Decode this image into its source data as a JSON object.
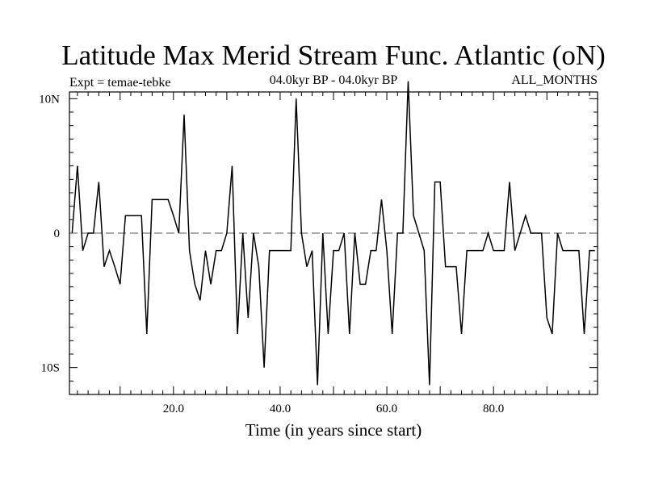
{
  "chart_data": {
    "type": "line",
    "title": "Latitude Max Merid Stream Func. Atlantic (oN)",
    "experiment_label": "Expt = temae-tebke",
    "period_label": "04.0kyr BP - 04.0kyr BP",
    "season_label": "ALL_MONTHS",
    "xlabel": "Time (in years since start)",
    "ylabel": "",
    "xlim": [
      0.5,
      99.5
    ],
    "ylim": [
      -12.0,
      10.5
    ],
    "x_ticks": [
      {
        "value": 20,
        "label": "20.0"
      },
      {
        "value": 40,
        "label": "40.0"
      },
      {
        "value": 60,
        "label": "60.0"
      },
      {
        "value": 80,
        "label": "80.0"
      }
    ],
    "y_ticks": [
      {
        "value": 10,
        "label": "10N"
      },
      {
        "value": 0,
        "label": "0"
      },
      {
        "value": -10,
        "label": "10S"
      }
    ],
    "zero_line": "dashed",
    "line_color": "#000000",
    "series": [
      {
        "name": "",
        "x": [
          1,
          2,
          3,
          4,
          5,
          6,
          7,
          8,
          9,
          10,
          11,
          12,
          13,
          14,
          15,
          16,
          17,
          18,
          19,
          20,
          21,
          22,
          23,
          24,
          25,
          26,
          27,
          28,
          29,
          30,
          31,
          32,
          33,
          34,
          35,
          36,
          37,
          38,
          39,
          40,
          41,
          42,
          43,
          44,
          45,
          46,
          47,
          48,
          49,
          50,
          51,
          52,
          53,
          54,
          55,
          56,
          57,
          58,
          59,
          60,
          61,
          62,
          63,
          64,
          65,
          66,
          67,
          68,
          69,
          70,
          71,
          72,
          73,
          74,
          75,
          76,
          77,
          78,
          79,
          80,
          81,
          82,
          83,
          84,
          85,
          86,
          87,
          88,
          89,
          90,
          91,
          92,
          93,
          94,
          95,
          96,
          97,
          98,
          99
        ],
        "y": [
          0,
          5,
          -1.3,
          0,
          0,
          3.8,
          -2.5,
          -1.3,
          -2.5,
          -3.8,
          1.3,
          1.3,
          1.3,
          1.3,
          -7.5,
          2.5,
          2.5,
          2.5,
          2.5,
          1.3,
          0,
          8.8,
          -1.3,
          -3.8,
          -5,
          -1.3,
          -3.8,
          -1.3,
          -1.3,
          0,
          5,
          -7.5,
          0,
          -6.3,
          0,
          -2.5,
          -10,
          -1.3,
          -1.3,
          -1.3,
          -1.3,
          -1.3,
          10,
          0,
          -2.5,
          -1.3,
          -11.3,
          0,
          -7.5,
          -1.3,
          -1.3,
          0,
          -7.5,
          0,
          -3.8,
          -3.8,
          -1.3,
          -1.3,
          2.5,
          -1.3,
          -7.5,
          0,
          0,
          11.3,
          1.3,
          0,
          -1.3,
          -11.3,
          3.8,
          3.8,
          -2.5,
          -2.5,
          -2.5,
          -7.5,
          -1.3,
          -1.3,
          -1.3,
          -1.3,
          0,
          -1.3,
          -1.3,
          -1.3,
          3.8,
          -1.3,
          0,
          1.3,
          0,
          0,
          0,
          -6.3,
          -7.5,
          0,
          -1.3,
          -1.3,
          -1.3,
          -1.3,
          -7.5,
          -1.3,
          -1.3
        ]
      }
    ]
  }
}
